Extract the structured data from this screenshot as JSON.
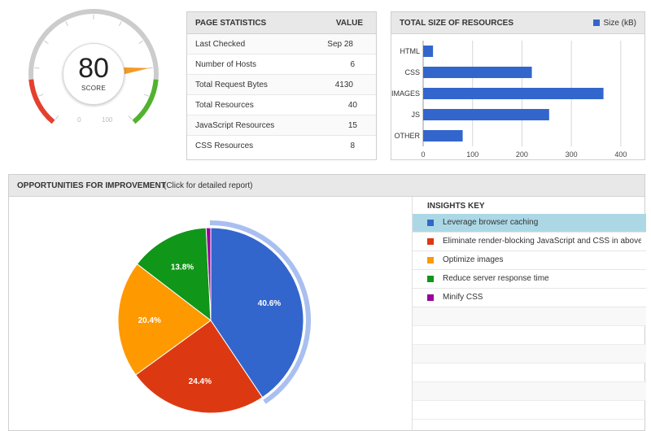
{
  "gauge": {
    "score": "80",
    "score_label": "SCORE",
    "scale_min_label": "0",
    "scale_max_label": "100",
    "colors": {
      "bad": "#e4402e",
      "good": "#52b22f",
      "neutral": "#cccccc",
      "needle": "#f39c25"
    }
  },
  "stats": {
    "title": "PAGE STATISTICS",
    "value_header": "VALUE",
    "rows": [
      {
        "label": "Last Checked",
        "value": "Sep 28"
      },
      {
        "label": "Number of Hosts",
        "value": "6"
      },
      {
        "label": "Total Request Bytes",
        "value": "4130"
      },
      {
        "label": "Total Resources",
        "value": "40"
      },
      {
        "label": "JavaScript Resources",
        "value": "15"
      },
      {
        "label": "CSS Resources",
        "value": "8"
      }
    ]
  },
  "size": {
    "title": "TOTAL SIZE OF RESOURCES",
    "legend": "Size (kB)"
  },
  "opportunities": {
    "title": "OPPORTUNITIES FOR IMPROVEMENT",
    "subtitle": "(Click for detailed report)",
    "insights_title": "INSIGHTS KEY",
    "keys": [
      {
        "label": "Leverage browser caching",
        "color": "#3366cc"
      },
      {
        "label": "Eliminate render-blocking JavaScript and CSS in above-",
        "color": "#dc3912"
      },
      {
        "label": "Optimize images",
        "color": "#ff9900"
      },
      {
        "label": "Reduce server response time",
        "color": "#109618"
      },
      {
        "label": "Minify CSS",
        "color": "#990099"
      }
    ]
  },
  "chart_data": [
    {
      "type": "bar",
      "orientation": "horizontal",
      "title": "TOTAL SIZE OF RESOURCES",
      "categories": [
        "HTML",
        "CSS",
        "IMAGES",
        "JS",
        "OTHER"
      ],
      "series": [
        {
          "name": "Size (kB)",
          "values": [
            20,
            220,
            365,
            255,
            80
          ]
        }
      ],
      "xlim": [
        0,
        420
      ],
      "xticks": [
        "0",
        "100",
        "200",
        "300",
        "400"
      ],
      "grid": true,
      "legend": "top-right",
      "color": "#3366cc"
    },
    {
      "type": "pie",
      "labels": [
        "Leverage browser caching",
        "Eliminate render-blocking JavaScript and CSS in above-",
        "Optimize images",
        "Reduce server response time",
        "Minify CSS"
      ],
      "values": [
        40.6,
        24.4,
        20.4,
        13.8,
        0.8
      ],
      "data_labels": [
        "40.6%",
        "24.4%",
        "20.4%",
        "13.8%",
        ""
      ],
      "colors": [
        "#3366cc",
        "#dc3912",
        "#ff9900",
        "#109618",
        "#990099"
      ],
      "highlighted": "Leverage browser caching"
    }
  ]
}
